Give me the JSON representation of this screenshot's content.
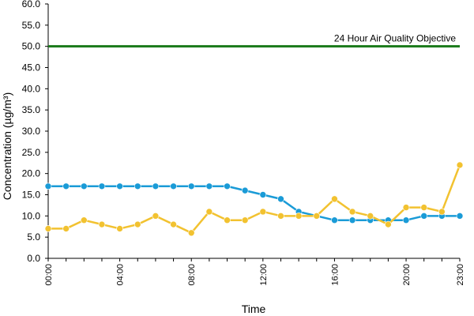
{
  "chart_data": {
    "type": "line",
    "title": "",
    "xlabel": "Time",
    "ylabel": "Concentration (µg/m³)",
    "ylim": [
      0,
      60
    ],
    "y_ticks": [
      "0.0",
      "5.0",
      "10.0",
      "15.0",
      "20.0",
      "25.0",
      "30.0",
      "35.0",
      "40.0",
      "45.0",
      "50.0",
      "55.0",
      "60.0"
    ],
    "x": [
      "00:00",
      "01:00",
      "02:00",
      "03:00",
      "04:00",
      "05:00",
      "06:00",
      "07:00",
      "08:00",
      "09:00",
      "10:00",
      "11:00",
      "12:00",
      "13:00",
      "14:00",
      "15:00",
      "16:00",
      "17:00",
      "18:00",
      "19:00",
      "20:00",
      "21:00",
      "22:00",
      "23:00"
    ],
    "x_tick_labels": [
      "00:00",
      "04:00",
      "08:00",
      "12:00",
      "16:00",
      "20:00",
      "23:00"
    ],
    "grid": false,
    "legend": "none",
    "series": [
      {
        "color": "#1a9bd7",
        "values": [
          17,
          17,
          17,
          17,
          17,
          17,
          17,
          17,
          17,
          17,
          17,
          16,
          15,
          14,
          11,
          10,
          9,
          9,
          9,
          9,
          9,
          10,
          10,
          10
        ]
      },
      {
        "color": "#f2c230",
        "values": [
          7,
          7,
          9,
          8,
          7,
          8,
          10,
          8,
          6,
          11,
          9,
          9,
          11,
          10,
          10,
          10,
          14,
          11,
          10,
          8,
          12,
          12,
          11,
          22
        ]
      }
    ],
    "reference_line": {
      "value": 50,
      "label": "24 Hour Air Quality Objective",
      "color": "#1a7a1a"
    }
  }
}
